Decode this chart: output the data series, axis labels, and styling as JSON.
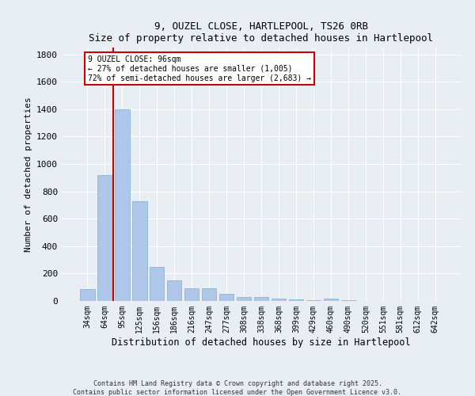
{
  "title_line1": "9, OUZEL CLOSE, HARTLEPOOL, TS26 0RB",
  "title_line2": "Size of property relative to detached houses in Hartlepool",
  "xlabel": "Distribution of detached houses by size in Hartlepool",
  "ylabel": "Number of detached properties",
  "categories": [
    "34sqm",
    "64sqm",
    "95sqm",
    "125sqm",
    "156sqm",
    "186sqm",
    "216sqm",
    "247sqm",
    "277sqm",
    "308sqm",
    "338sqm",
    "368sqm",
    "399sqm",
    "429sqm",
    "460sqm",
    "490sqm",
    "520sqm",
    "551sqm",
    "581sqm",
    "612sqm",
    "642sqm"
  ],
  "values": [
    85,
    920,
    1400,
    730,
    250,
    150,
    90,
    90,
    50,
    30,
    30,
    15,
    10,
    5,
    15,
    3,
    0,
    0,
    0,
    0,
    0
  ],
  "bar_color": "#aec6e8",
  "bar_edge_color": "#7ab0d4",
  "vline_color": "#cc0000",
  "annotation_text": "9 OUZEL CLOSE: 96sqm\n← 27% of detached houses are smaller (1,005)\n72% of semi-detached houses are larger (2,683) →",
  "annotation_box_color": "#ffffff",
  "annotation_box_edge_color": "#cc0000",
  "ylim": [
    0,
    1850
  ],
  "yticks": [
    0,
    200,
    400,
    600,
    800,
    1000,
    1200,
    1400,
    1600,
    1800
  ],
  "background_color": "#e8eef4",
  "grid_color": "#ffffff",
  "footer_line1": "Contains HM Land Registry data © Crown copyright and database right 2025.",
  "footer_line2": "Contains public sector information licensed under the Open Government Licence v3.0."
}
